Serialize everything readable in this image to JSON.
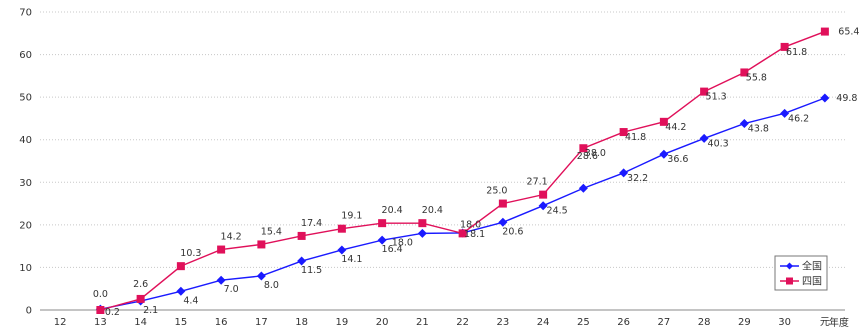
{
  "chart_data": {
    "type": "line",
    "categories": [
      "12",
      "13",
      "14",
      "15",
      "16",
      "17",
      "18",
      "19",
      "20",
      "21",
      "22",
      "23",
      "24",
      "25",
      "26",
      "27",
      "28",
      "29",
      "30",
      "元"
    ],
    "x_unit_label": "年度",
    "ylim": [
      0,
      70
    ],
    "yticks": [
      0,
      10,
      20,
      30,
      40,
      50,
      60,
      70
    ],
    "grid": true,
    "legend_position": "bottom-right",
    "series": [
      {
        "name": "全国",
        "color": "#1a1aff",
        "marker": "diamond",
        "values": [
          null,
          0.2,
          2.1,
          4.4,
          7.0,
          8.0,
          11.5,
          14.1,
          16.4,
          18.0,
          18.1,
          20.6,
          24.5,
          28.6,
          32.2,
          36.6,
          40.3,
          43.8,
          46.2,
          49.8
        ],
        "labels": [
          "",
          "0.2",
          "2.1",
          "4.4",
          "7.0",
          "8.0",
          "11.5",
          "14.1",
          "16.4",
          "18.0",
          "18.1",
          "20.6",
          "24.5",
          "",
          "32.2",
          "36.6",
          "40.3",
          "43.8",
          "46.2",
          "49.8"
        ]
      },
      {
        "name": "四国",
        "color": "#e0105a",
        "marker": "square",
        "values": [
          null,
          0.0,
          2.6,
          10.3,
          14.2,
          15.4,
          17.4,
          19.1,
          20.4,
          20.4,
          18.0,
          25.0,
          27.1,
          38.0,
          41.8,
          44.2,
          51.3,
          55.8,
          61.8,
          65.4
        ],
        "labels": [
          "",
          "0.0",
          "2.6",
          "10.3",
          "14.2",
          "15.4",
          "17.4",
          "19.1",
          "20.4",
          "20.4",
          "18.0",
          "25.0",
          "27.1",
          "38.0",
          "41.8",
          "44.2",
          "51.3",
          "55.8",
          "61.8",
          "65.4"
        ]
      }
    ],
    "extra_labels": [
      {
        "series": 0,
        "index": 13,
        "text": "28.6"
      }
    ]
  }
}
